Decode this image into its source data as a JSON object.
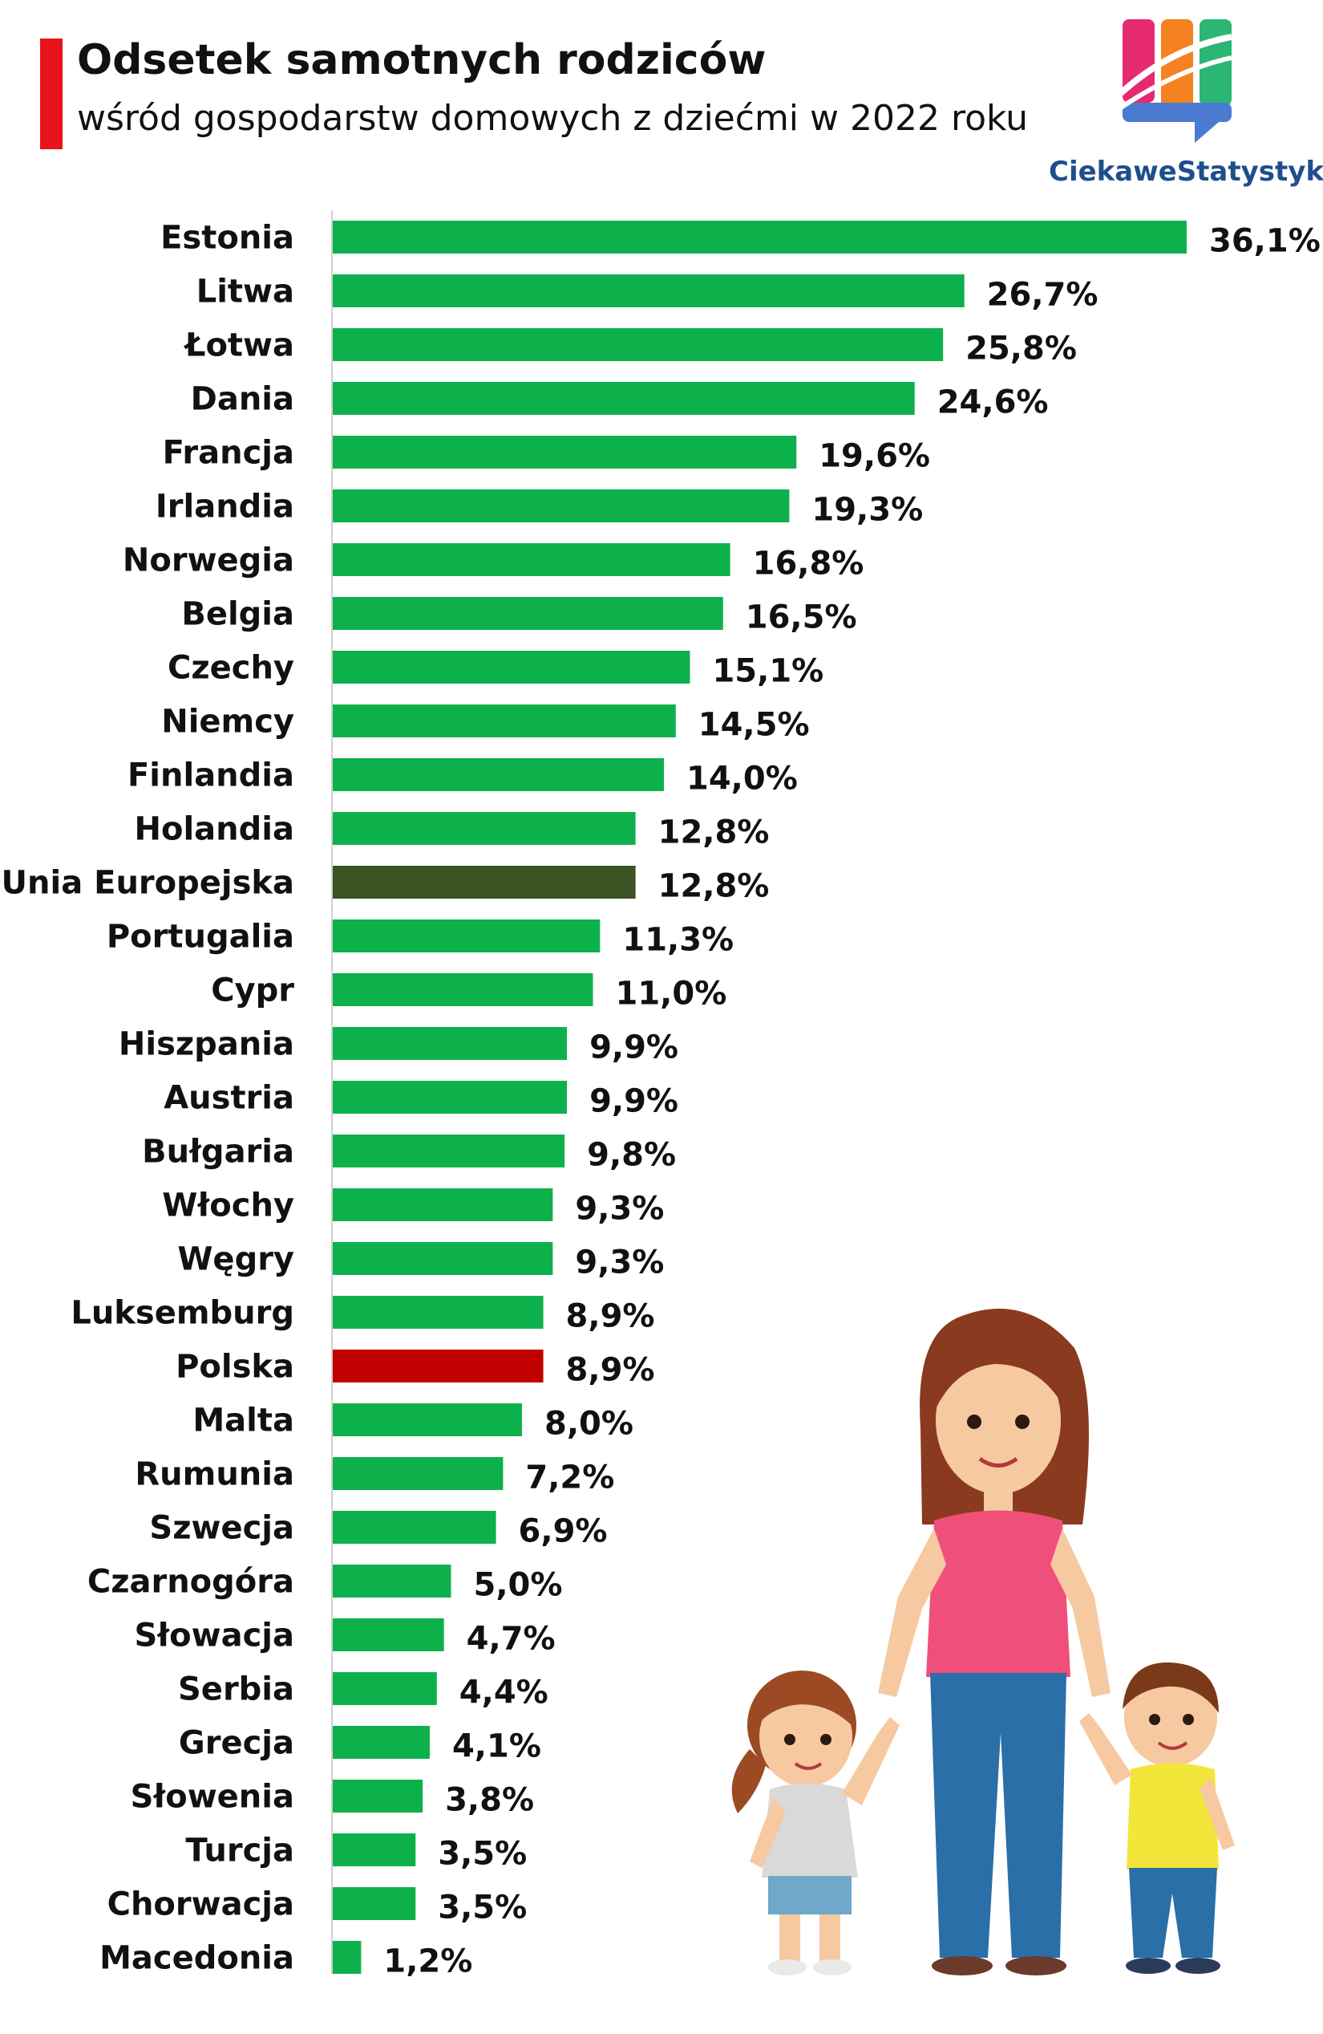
{
  "header": {
    "title": "Odsetek samotnych rodziców",
    "subtitle": "wśród gospodarstw domowych z dziećmi w 2022 roku",
    "accent_color": "#e8141c"
  },
  "brand": {
    "name": "CiekaweStatystyki.pl",
    "text_color": "#1f4e8c",
    "logo_colors": [
      "#e52a6f",
      "#f58220",
      "#2bb673",
      "#4a7bd0"
    ]
  },
  "illustration": {
    "icon": "mother-with-two-children-illustration"
  },
  "chart_data": {
    "type": "bar",
    "orientation": "horizontal",
    "title": "Odsetek samotnych rodziców",
    "subtitle": "wśród gospodarstw domowych z dziećmi w 2022 roku",
    "xlabel": "",
    "ylabel": "",
    "xlim": [
      0,
      36.1
    ],
    "grid": false,
    "value_suffix": "%",
    "colors": {
      "default": "#0db14b",
      "eu": "#3b5323",
      "poland": "#c00000"
    },
    "categories": [
      "Estonia",
      "Litwa",
      "Łotwa",
      "Dania",
      "Francja",
      "Irlandia",
      "Norwegia",
      "Belgia",
      "Czechy",
      "Niemcy",
      "Finlandia",
      "Holandia",
      "Unia Europejska",
      "Portugalia",
      "Cypr",
      "Hiszpania",
      "Austria",
      "Bułgaria",
      "Włochy",
      "Węgry",
      "Luksemburg",
      "Polska",
      "Malta",
      "Rumunia",
      "Szwecja",
      "Czarnogóra",
      "Słowacja",
      "Serbia",
      "Grecja",
      "Słowenia",
      "Turcja",
      "Chorwacja",
      "Macedonia"
    ],
    "values": [
      36.1,
      26.7,
      25.8,
      24.6,
      19.6,
      19.3,
      16.8,
      16.5,
      15.1,
      14.5,
      14.0,
      12.8,
      12.8,
      11.3,
      11.0,
      9.9,
      9.9,
      9.8,
      9.3,
      9.3,
      8.9,
      8.9,
      8.0,
      7.2,
      6.9,
      5.0,
      4.7,
      4.4,
      4.1,
      3.8,
      3.5,
      3.5,
      1.2
    ],
    "labels": [
      "36,1%",
      "26,7%",
      "25,8%",
      "24,6%",
      "19,6%",
      "19,3%",
      "16,8%",
      "16,5%",
      "15,1%",
      "14,5%",
      "14,0%",
      "12,8%",
      "12,8%",
      "11,3%",
      "11,0%",
      "9,9%",
      "9,9%",
      "9,8%",
      "9,3%",
      "9,3%",
      "8,9%",
      "8,9%",
      "8,0%",
      "7,2%",
      "6,9%",
      "5,0%",
      "4,7%",
      "4,4%",
      "4,1%",
      "3,8%",
      "3,5%",
      "3,5%",
      "1,2%"
    ],
    "highlight": {
      "Unia Europejska": "eu",
      "Polska": "poland"
    }
  }
}
